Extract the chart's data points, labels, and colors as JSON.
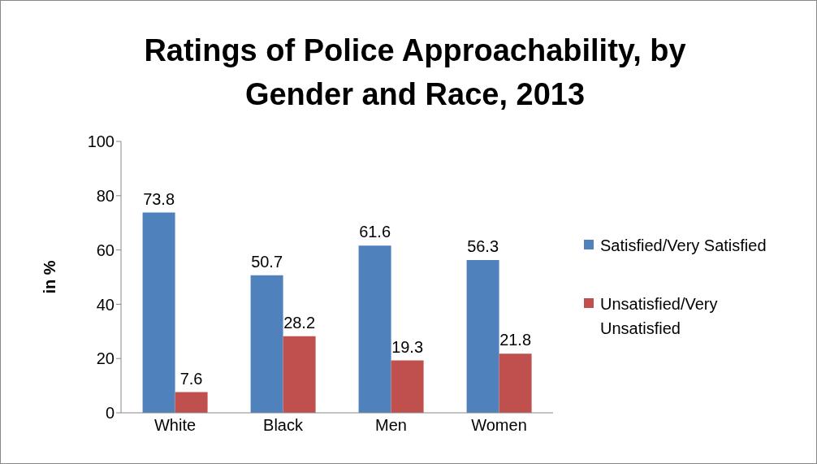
{
  "chart_data": {
    "type": "bar",
    "title": "Ratings of Police Approachability, by Gender and Race, 2013",
    "ylabel": "in %",
    "categories": [
      "White",
      "Black",
      "Men",
      "Women"
    ],
    "series": [
      {
        "name": "Satisfied/Very Satisfied",
        "color": "#4f81bd",
        "values": [
          73.8,
          50.7,
          61.6,
          56.3
        ]
      },
      {
        "name": "Unsatisfied/Very Unsatisfied",
        "color": "#c0504d",
        "values": [
          7.6,
          28.2,
          19.3,
          21.8
        ]
      }
    ],
    "ylim": [
      0,
      100
    ],
    "yticks": [
      0,
      20,
      40,
      60,
      80,
      100
    ],
    "legend": "right",
    "data_labels": true
  }
}
